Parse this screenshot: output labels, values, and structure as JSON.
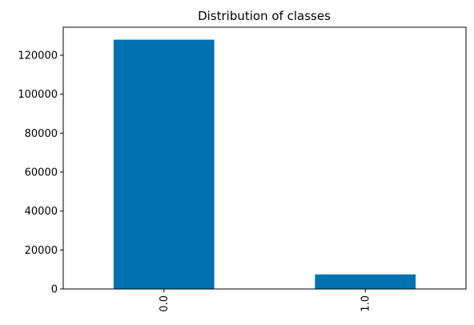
{
  "chart_data": {
    "type": "bar",
    "title": "Distribution of classes",
    "xlabel": "",
    "ylabel": "",
    "categories": [
      "0.0",
      "1.0"
    ],
    "values": [
      128000,
      7500
    ],
    "ylim": [
      0,
      134400
    ],
    "yticks": [
      0,
      20000,
      40000,
      60000,
      80000,
      100000,
      120000
    ],
    "ytick_labels": [
      "0",
      "20000",
      "40000",
      "60000",
      "80000",
      "100000",
      "120000"
    ],
    "grid": false,
    "legend": "none",
    "bar_color": "#0072b2",
    "xtick_rotation_deg": 90
  }
}
